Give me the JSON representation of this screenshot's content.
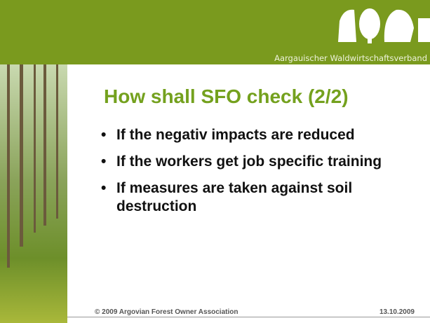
{
  "header": {
    "org": "Aargauischer Waldwirtschaftsverband"
  },
  "slide": {
    "title": "How shall SFO check (2/2)",
    "bullets": [
      "If the negativ impacts are reduced",
      "If the workers get job specific training",
      "If measures are taken against soil destruction"
    ]
  },
  "footer": {
    "copyright": "© 2009 Argovian Forest Owner Association",
    "date": "13.10.2009"
  }
}
